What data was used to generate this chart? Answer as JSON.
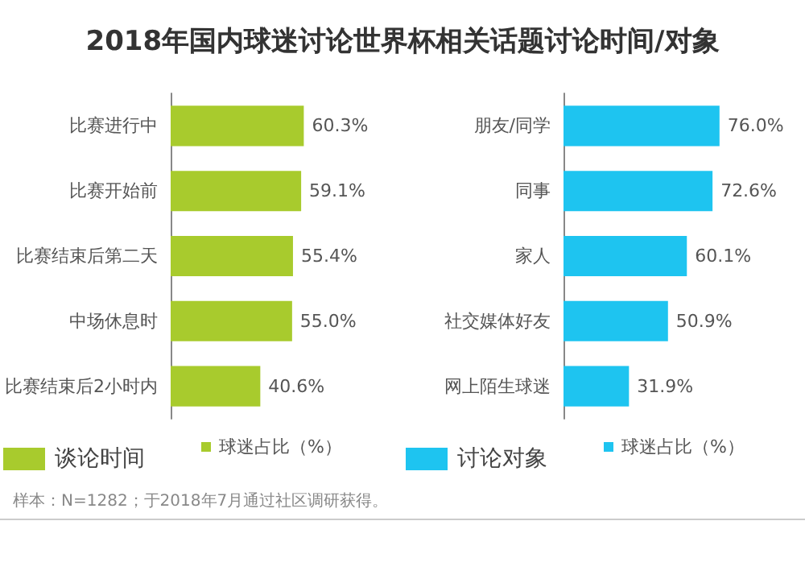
{
  "chart_data": [
    {
      "type": "bar",
      "title": "2018年国内球迷讨论世界杯相关话题讨论时间/对象",
      "orientation": "horizontal",
      "legend": "bottom",
      "legend_title": "谈论时间",
      "categories": [
        "比赛进行中",
        "比赛开始前",
        "比赛结束后第二天",
        "中场休息时",
        "比赛结束后2小时内"
      ],
      "series": [
        {
          "name": "球迷占比（%）",
          "color": "#a8cb2d",
          "values": [
            60.3,
            59.1,
            55.4,
            55.0,
            40.6
          ],
          "value_labels": [
            "60.3%",
            "59.1%",
            "55.4%",
            "55.0%",
            "40.6%"
          ]
        }
      ],
      "annotations": [
        "样本：N=1282；于2018年7月通过社区调研获得。"
      ]
    },
    {
      "type": "bar",
      "orientation": "horizontal",
      "legend": "bottom",
      "legend_title": "讨论对象",
      "categories": [
        "朋友/同学",
        "同事",
        "家人",
        "社交媒体好友",
        "网上陌生球迷"
      ],
      "series": [
        {
          "name": "球迷占比（%）",
          "color": "#1ec4f0",
          "values": [
            76.0,
            72.6,
            60.1,
            50.9,
            31.9
          ],
          "value_labels": [
            "76.0%",
            "72.6%",
            "60.1%",
            "50.9%",
            "31.9%"
          ]
        }
      ]
    }
  ]
}
